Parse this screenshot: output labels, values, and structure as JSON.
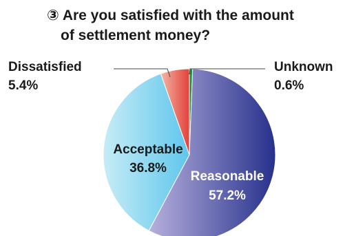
{
  "chart_data": {
    "type": "pie",
    "title_line1": "③ Are you satisfied with the amount",
    "title_line2": "of settlement money?",
    "start_angle_deg": 0,
    "direction": "clockwise",
    "legend": "none",
    "slices": [
      {
        "name": "Unknown",
        "value": 0.6,
        "label": "0.6%",
        "color": "#1e8e3e"
      },
      {
        "name": "Reasonable",
        "value": 57.2,
        "label": "57.2%",
        "color_start": "#b6b0dd",
        "color_end": "#27318c"
      },
      {
        "name": "Acceptable",
        "value": 36.8,
        "label": "36.8%",
        "color_start": "#c6ecf6",
        "color_end": "#5fc6ec"
      },
      {
        "name": "Dissatisfied",
        "value": 5.4,
        "label": "5.4%",
        "color_start": "#f4b6a4",
        "color_end": "#e2413a"
      }
    ]
  }
}
